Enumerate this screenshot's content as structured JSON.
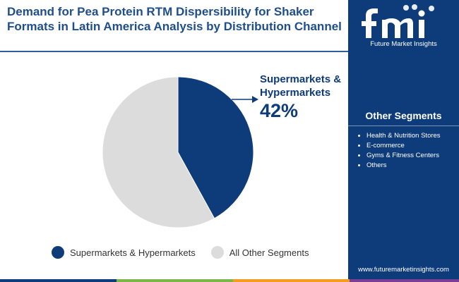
{
  "header": {
    "title": "Demand for Pea Protein RTM Dispersibility for Shaker Formats in Latin America Analysis by Distribution Channel"
  },
  "chart_data": {
    "type": "pie",
    "slices": [
      {
        "label": "Supermarkets & Hypermarkets",
        "value": 42,
        "color": "#0e3c7a"
      },
      {
        "label": "All Other Segments",
        "value": 58,
        "color": "#dcdcdc"
      }
    ],
    "callout": {
      "label": "Supermarkets & Hypermarkets",
      "value": "42%"
    },
    "legend": [
      "Supermarkets & Hypermarkets",
      "All Other Segments"
    ],
    "legend_position": "bottom"
  },
  "sidebar": {
    "logo_text": "Future Market Insights",
    "heading": "Other Segments",
    "items": [
      "Health & Nutrition Stores",
      "E-commerce",
      "Gyms & Fitness Centers",
      "Others"
    ],
    "website": "www.futuremarketinsights.com"
  },
  "colors": {
    "accent": "#0e3c7a",
    "title": "#1f4e8c",
    "other": "#dcdcdc",
    "bottom_bar": [
      "#0e3c7a",
      "#7ab648",
      "#f39c1f",
      "#7b3f98"
    ]
  }
}
